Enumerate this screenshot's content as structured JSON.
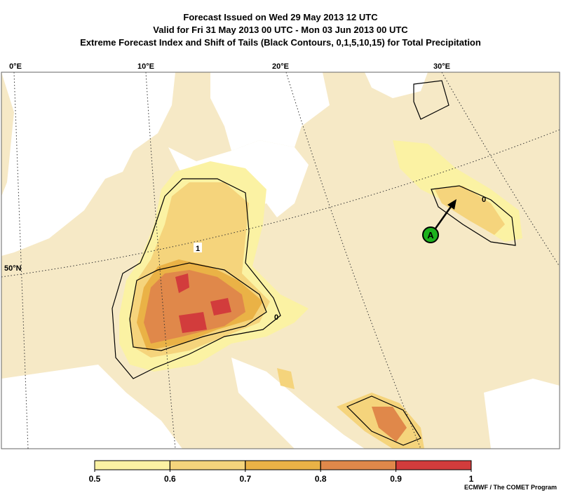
{
  "header": {
    "title_lines": [
      "Forecast Issued on Wed 29 May 2013 12 UTC",
      "Valid for Fri 31 May 2013 00 UTC - Mon 03 Jun 2013 00 UTC",
      "Extreme Forecast Index and Shift of Tails (Black Contours, 0,1,5,10,15) for Total Precipitation"
    ]
  },
  "map": {
    "longitude_labels": [
      "0°E",
      "10°E",
      "20°E",
      "30°E"
    ],
    "latitude_labels": [
      "50°N"
    ],
    "contour_labels": [
      "1",
      "0",
      "0"
    ],
    "marker": "A"
  },
  "colorbar": {
    "ticks": [
      0.5,
      0.6,
      0.7,
      0.8,
      0.9,
      1
    ],
    "colors": [
      "#fbf2a3",
      "#f5d47c",
      "#eab246",
      "#e0884a",
      "#d23c3c"
    ]
  },
  "credit": "ECMWF / The COMET Program"
}
